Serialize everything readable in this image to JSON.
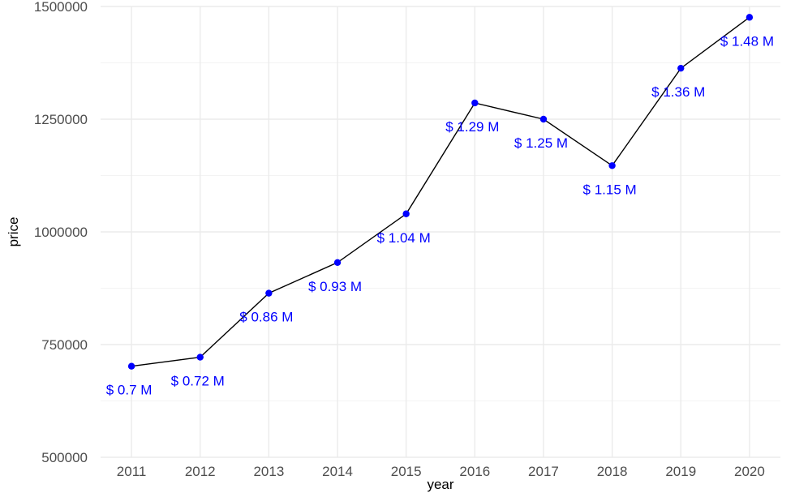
{
  "chart_data": {
    "type": "line",
    "title": "",
    "xlabel": "year",
    "ylabel": "price",
    "x": [
      2011,
      2012,
      2013,
      2014,
      2015,
      2016,
      2017,
      2018,
      2019,
      2020
    ],
    "series": [
      {
        "values": [
          702000,
          722000,
          864000,
          932000,
          1040000,
          1286000,
          1250000,
          1147000,
          1363000,
          1476000
        ],
        "point_labels": [
          "$ 0.7 M",
          "$ 0.72 M",
          "$ 0.86 M",
          "$ 0.93 M",
          "$ 1.04 M",
          "$ 1.29 M",
          "$ 1.25 M",
          "$ 1.15 M",
          "$ 1.36 M",
          "$ 1.48 M"
        ]
      }
    ],
    "xticks": [
      "2011",
      "2012",
      "2013",
      "2014",
      "2015",
      "2016",
      "2017",
      "2018",
      "2019",
      "2020"
    ],
    "yticks": [
      500000,
      750000,
      1000000,
      1250000,
      1500000
    ],
    "ytick_labels": [
      "500000",
      "750000",
      "1000000",
      "1250000",
      "1500000"
    ],
    "ylim": [
      500000,
      1500000
    ],
    "xlim": [
      2010.55,
      2020.45
    ],
    "grid": true,
    "legend": "none",
    "colors": {
      "line": "#000000",
      "point": "#0000ff",
      "label": "#0000ff",
      "grid_major": "#ebebeb",
      "grid_minor": "#f3f3f3"
    }
  }
}
